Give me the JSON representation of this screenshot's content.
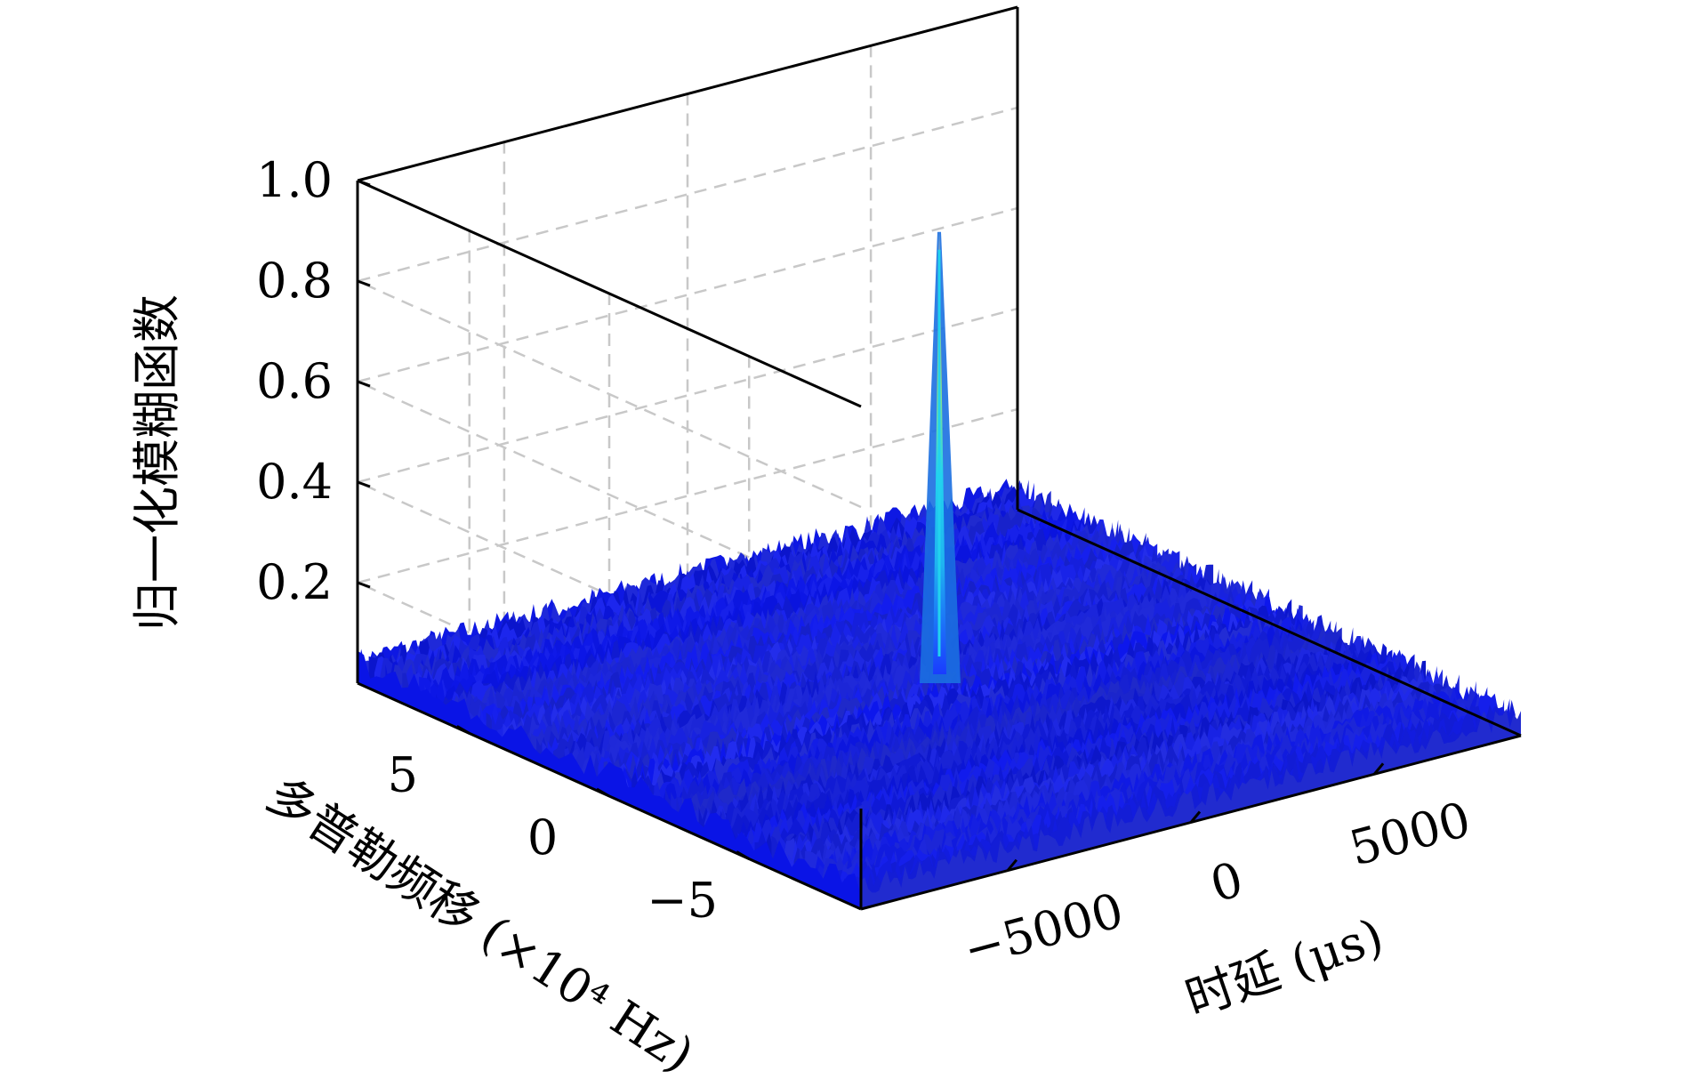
{
  "chart_data": {
    "type": "surface3d",
    "title": "",
    "xlabel": "时延 (μs)",
    "ylabel": "多普勒频移 (×10⁴ Hz)",
    "zlabel": "归一化模糊函数",
    "x_ticks": [
      -5000,
      0,
      5000
    ],
    "x_tick_labels": [
      "−5000",
      "0",
      "5000"
    ],
    "y_ticks": [
      -5,
      0,
      5
    ],
    "y_tick_labels": [
      "−5",
      "0",
      "5"
    ],
    "z_ticks": [
      0.2,
      0.4,
      0.6,
      0.8,
      1.0
    ],
    "z_tick_labels": [
      "0.2",
      "0.4",
      "0.6",
      "0.8",
      "1.0"
    ],
    "xlim": [
      -9000,
      9000
    ],
    "ylim": [
      -9,
      9
    ],
    "zlim": [
      0,
      1.0
    ],
    "grid": true,
    "colormap": "jet",
    "peak": {
      "x": 0,
      "y": 0,
      "z": 0.95
    },
    "floor_level_range": [
      0.02,
      0.07
    ],
    "colors": {
      "floor": "#0a14e6",
      "peak_core": "#22d3ee",
      "peak_top": "#f5a742"
    }
  }
}
